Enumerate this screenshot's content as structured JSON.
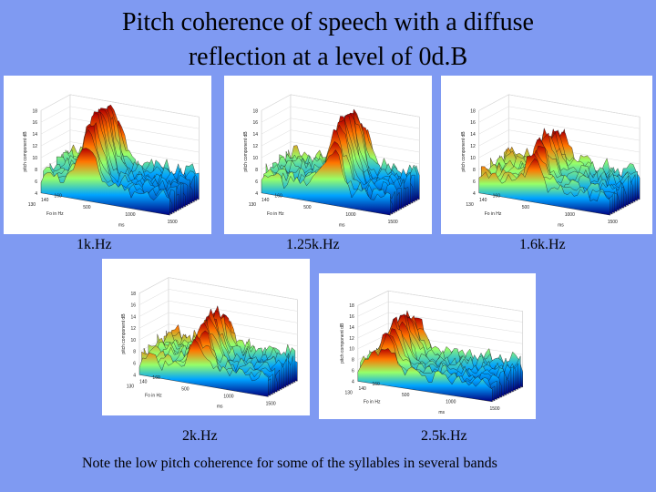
{
  "slide": {
    "title_line1": "Pitch coherence of speech with a diffuse",
    "title_line2": "reflection at a level of 0d.B",
    "note": "Note the low pitch coherence for some of the syllables in several bands"
  },
  "plots": [
    {
      "band": "1k.Hz",
      "peak": 0.82,
      "peak_pos": 0.35
    },
    {
      "band": "1.25k.Hz",
      "peak": 0.78,
      "peak_pos": 0.55
    },
    {
      "band": "1.6k.Hz",
      "peak": 0.45,
      "peak_pos": 0.4
    },
    {
      "band": "2k.Hz",
      "peak": 0.5,
      "peak_pos": 0.45
    },
    {
      "band": "2.5k.Hz",
      "peak": 0.55,
      "peak_pos": 0.2
    }
  ],
  "axis": {
    "zlabel": "pitch component dB",
    "xlabel": "ms",
    "ylabel": "Fo in Hz",
    "z_ticks": [
      "18",
      "16",
      "14",
      "12",
      "10",
      "8",
      "6",
      "4"
    ],
    "y_ticks": [
      "160",
      "140",
      "130"
    ],
    "x_ticks": [
      "500",
      "1000",
      "1500"
    ]
  },
  "colors": {
    "background": "#7f9af2"
  }
}
